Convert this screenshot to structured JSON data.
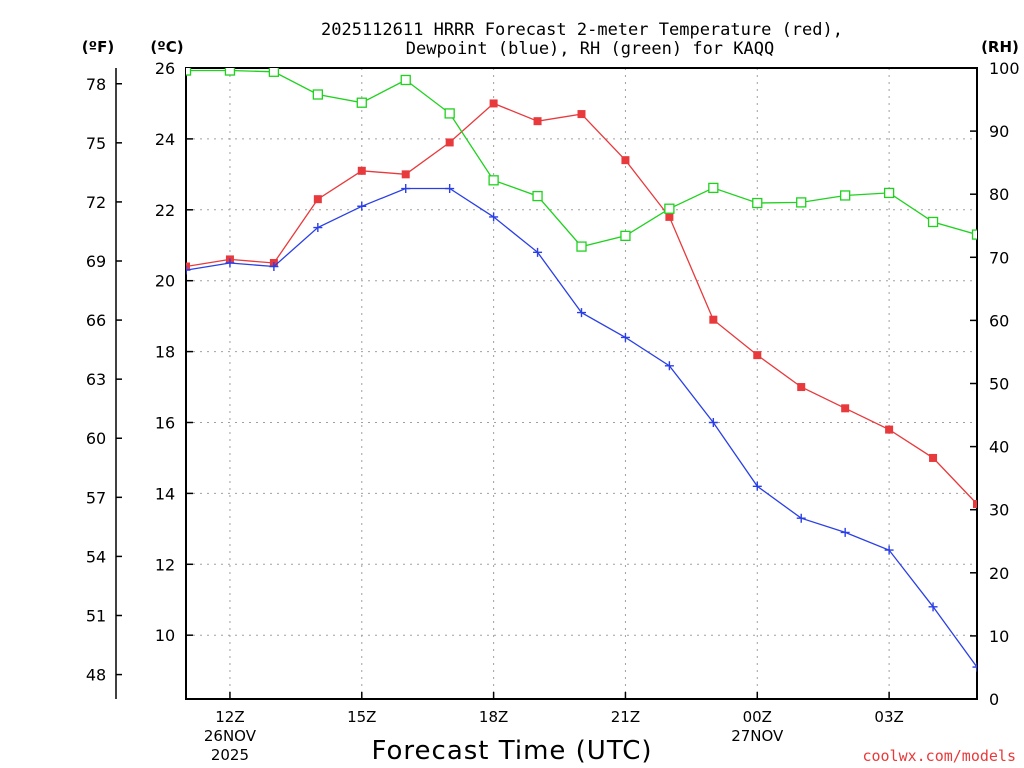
{
  "title_line1": "2025112611 HRRR Forecast 2-meter Temperature (red),",
  "title_line2": "Dewpoint (blue), RH (green) for KAQQ",
  "units": {
    "fahrenheit": "(ºF)",
    "celsius": "(ºC)",
    "rh": "(RH)"
  },
  "credit": "coolwx.com/models",
  "colors": {
    "temperature": "#e8393c",
    "dewpoint": "#2a3fe6",
    "rh": "#1ed21e"
  },
  "chart_data": {
    "type": "line",
    "xlabel": "Forecast Time (UTC)",
    "x_hours": [
      11,
      12,
      13,
      14,
      15,
      16,
      17,
      18,
      19,
      20,
      21,
      22,
      23,
      24,
      25,
      26,
      27,
      28,
      29
    ],
    "x_ticks": [
      {
        "hour": 12,
        "label": "12Z",
        "sub1": "26NOV",
        "sub2": "2025"
      },
      {
        "hour": 15,
        "label": "15Z",
        "sub1": "",
        "sub2": ""
      },
      {
        "hour": 18,
        "label": "18Z",
        "sub1": "",
        "sub2": ""
      },
      {
        "hour": 21,
        "label": "21Z",
        "sub1": "",
        "sub2": ""
      },
      {
        "hour": 24,
        "label": "00Z",
        "sub1": "27NOV",
        "sub2": ""
      },
      {
        "hour": 27,
        "label": "03Z",
        "sub1": "",
        "sub2": ""
      }
    ],
    "xlim": [
      11,
      29
    ],
    "celsius_range": [
      8.2,
      26
    ],
    "celsius_ticks": [
      "10",
      "12",
      "14",
      "16",
      "18",
      "20",
      "22",
      "24",
      "26"
    ],
    "fahrenheit_ticks": [
      "48",
      "51",
      "54",
      "57",
      "60",
      "63",
      "66",
      "69",
      "72",
      "75",
      "78"
    ],
    "rh_range": [
      0,
      100
    ],
    "rh_ticks": [
      "0",
      "10",
      "20",
      "30",
      "40",
      "50",
      "60",
      "70",
      "80",
      "90",
      "100"
    ],
    "series": [
      {
        "name": "Temperature",
        "axis": "celsius",
        "marker": "filled-square",
        "values": [
          20.4,
          20.6,
          20.5,
          22.3,
          23.1,
          23.0,
          23.9,
          25.0,
          24.5,
          24.7,
          23.4,
          21.8,
          18.9,
          17.9,
          17.0,
          16.4,
          15.8,
          15.0,
          13.7
        ]
      },
      {
        "name": "Dewpoint",
        "axis": "celsius",
        "marker": "plus",
        "values": [
          20.3,
          20.5,
          20.4,
          21.5,
          22.1,
          22.6,
          22.6,
          21.8,
          20.8,
          19.1,
          18.4,
          17.6,
          16.0,
          14.2,
          13.3,
          12.9,
          12.4,
          10.8,
          9.1
        ]
      },
      {
        "name": "RH",
        "axis": "rh",
        "marker": "open-square",
        "values": [
          99.6,
          99.6,
          99.4,
          95.8,
          94.5,
          98.1,
          92.8,
          82.2,
          79.7,
          71.7,
          73.4,
          77.7,
          81.0,
          78.6,
          78.7,
          79.8,
          80.2,
          75.6,
          73.6
        ]
      }
    ]
  }
}
